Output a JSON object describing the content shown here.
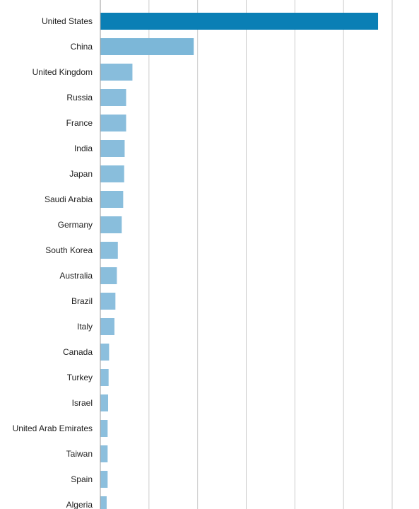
{
  "chart_data": {
    "type": "bar",
    "orientation": "horizontal",
    "title": "",
    "xlabel": "",
    "ylabel": "",
    "categories": [
      "United States",
      "China",
      "United Kingdom",
      "Russia",
      "France",
      "India",
      "Japan",
      "Saudi Arabia",
      "Germany",
      "South Korea",
      "Australia",
      "Brazil",
      "Italy",
      "Canada",
      "Turkey",
      "Israel",
      "United Arab Emirates",
      "Taiwan",
      "Spain",
      "Algeria"
    ],
    "values": [
      571,
      192,
      66,
      53,
      53,
      50,
      49,
      47,
      44,
      36,
      34,
      31,
      29,
      18,
      17,
      16,
      15,
      15,
      15,
      13
    ],
    "xlim": [
      0,
      600
    ],
    "x_ticks": [
      0,
      100,
      200,
      300,
      400,
      500,
      600
    ],
    "grid": true,
    "legend": "none",
    "colors": {
      "max": "#0a7fb5",
      "min": "#8cbfdd"
    }
  }
}
